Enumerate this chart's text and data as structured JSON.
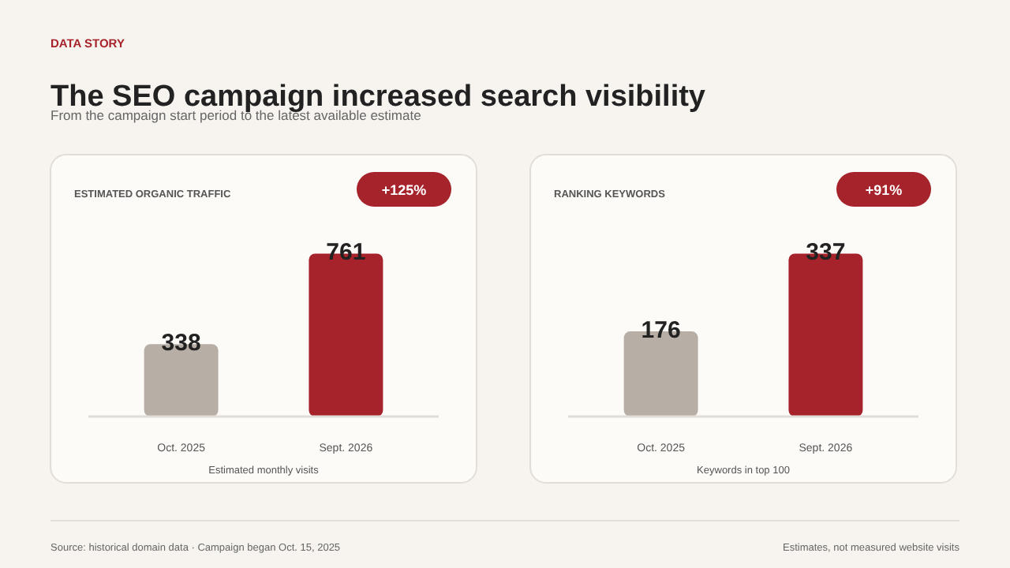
{
  "chart_data": [
    {
      "type": "other",
      "title": "The SEO campaign increased search visibility",
      "subtitle": "From the campaign start period to the latest available estimate",
      "annotations": [
        "DATA STORY",
        "Source: historical domain data · Campaign began Oct. 15, 2025",
        "Estimates, not measured website visits"
      ]
    },
    {
      "type": "bar",
      "title": "ESTIMATED ORGANIC TRAFFIC",
      "xlabel": "Estimated monthly visits",
      "categories": [
        "Oct. 2025",
        "Sept. 2026"
      ],
      "values": [
        338,
        761
      ],
      "colors": [
        "#b7aea6",
        "#a6232b"
      ],
      "data_labels": true,
      "annotations": [
        "+125%"
      ]
    },
    {
      "type": "bar",
      "title": "RANKING KEYWORDS",
      "xlabel": "Keywords in top 100",
      "categories": [
        "Oct. 2025",
        "Sept. 2026"
      ],
      "values": [
        176,
        337
      ],
      "colors": [
        "#b7aea6",
        "#a6232b"
      ],
      "data_labels": true,
      "annotations": [
        "+91%"
      ]
    }
  ]
}
